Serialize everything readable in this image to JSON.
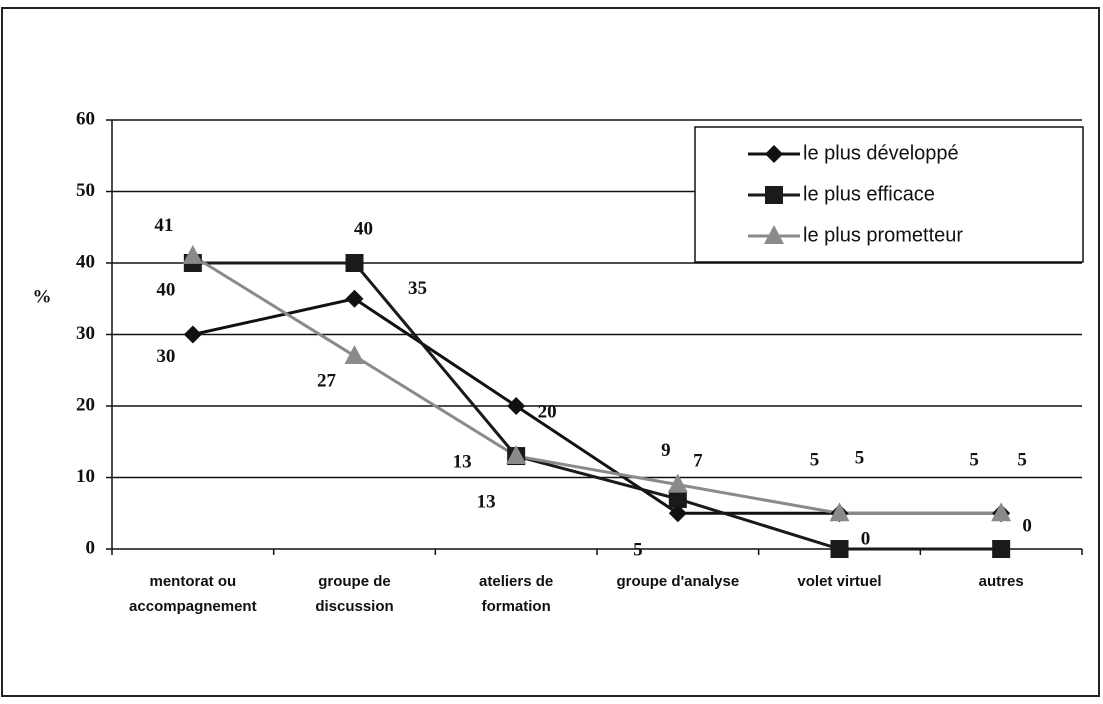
{
  "chart_data": {
    "type": "line",
    "y_label": "%",
    "categories": [
      "mentorat ou\naccompagnement",
      "groupe de\ndiscussion",
      "ateliers de\nformation",
      "groupe d'analyse",
      "volet virtuel",
      "autres"
    ],
    "series": [
      {
        "name": "le plus développé",
        "color": "#111111",
        "marker": "diamond",
        "values": [
          30,
          35,
          20,
          5,
          5,
          5
        ]
      },
      {
        "name": "le plus efficace",
        "color": "#1a1a1a",
        "marker": "square",
        "values": [
          40,
          40,
          13,
          7,
          0,
          0
        ]
      },
      {
        "name": "le plus prometteur",
        "color": "#8a8a8a",
        "marker": "triangle",
        "values": [
          41,
          27,
          13,
          9,
          5,
          5
        ]
      }
    ],
    "ylim": [
      0,
      60
    ],
    "yticks": [
      0,
      10,
      20,
      30,
      40,
      50,
      60
    ],
    "grid": true,
    "legend": "top-right"
  }
}
